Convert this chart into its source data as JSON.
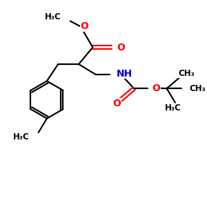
{
  "bg_color": "#ffffff",
  "bond_color": "#000000",
  "oxygen_color": "#ff0000",
  "nitrogen_color": "#0000cc",
  "line_width": 1.6,
  "figsize": [
    3.0,
    3.0
  ],
  "dpi": 100,
  "xlim": [
    0,
    10
  ],
  "ylim": [
    0,
    10
  ]
}
